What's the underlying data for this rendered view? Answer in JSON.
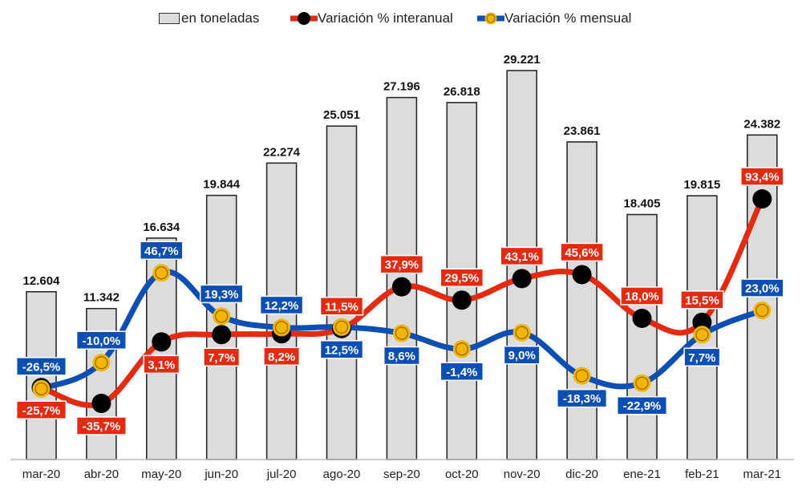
{
  "chart_data": {
    "type": "bar+line",
    "categories": [
      "mar-20",
      "abr-20",
      "may-20",
      "jun-20",
      "jul-20",
      "ago-20",
      "sep-20",
      "oct-20",
      "nov-20",
      "dic-20",
      "ene-21",
      "feb-21",
      "mar-21"
    ],
    "legend": [
      "en toneladas",
      "Variación % interanual",
      "Variación % mensual"
    ],
    "legend_position": "top",
    "grid": false,
    "series": [
      {
        "name": "en toneladas",
        "kind": "bar",
        "values": [
          12604,
          11342,
          16634,
          19844,
          22274,
          25051,
          27196,
          26818,
          29221,
          23861,
          18405,
          19815,
          24382
        ],
        "labels": [
          "12.604",
          "11.342",
          "16.634",
          "19.844",
          "22.274",
          "25.051",
          "27.196",
          "26.818",
          "29.221",
          "23.861",
          "18.405",
          "19.815",
          "24.382"
        ],
        "color": "#dcdcdc"
      },
      {
        "name": "Variación % interanual",
        "kind": "line",
        "values": [
          -25.7,
          -35.7,
          3.1,
          7.7,
          8.2,
          11.5,
          37.9,
          29.5,
          43.1,
          45.6,
          18.0,
          15.5,
          93.4
        ],
        "labels": [
          "-25,7%",
          "-35,7%",
          "3,1%",
          "7,7%",
          "8,2%",
          "11,5%",
          "37,9%",
          "29,5%",
          "43,1%",
          "45,6%",
          "18,0%",
          "15,5%",
          "93,4%"
        ],
        "color": "#e62a10",
        "marker_color": "#000000"
      },
      {
        "name": "Variación % mensual",
        "kind": "line",
        "values": [
          -26.5,
          -10.0,
          46.7,
          19.3,
          12.2,
          12.5,
          8.6,
          -1.4,
          9.0,
          -18.3,
          -22.9,
          7.7,
          23.0
        ],
        "labels": [
          "-26,5%",
          "-10,0%",
          "46,7%",
          "19,3%",
          "12,2%",
          "12,5%",
          "8,6%",
          "-1,4%",
          "9,0%",
          "-18,3%",
          "-22,9%",
          "7,7%",
          "23,0%"
        ],
        "color": "#0b4fb5",
        "marker_color": "#f5b400"
      }
    ],
    "xlabel": "",
    "ylabel": "",
    "ylim_bars": [
      0,
      29221
    ],
    "ylim_lines": [
      -35.7,
      93.4
    ]
  }
}
